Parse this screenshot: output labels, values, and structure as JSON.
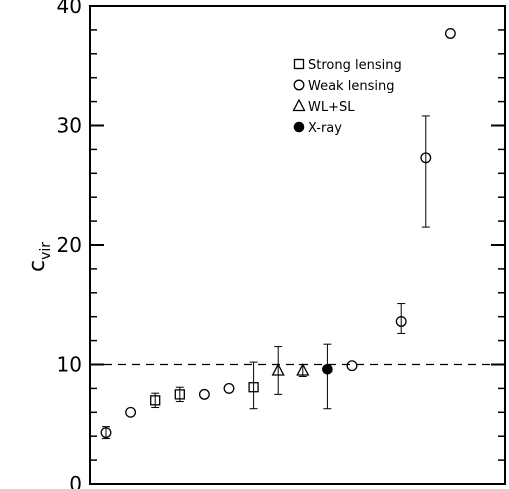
{
  "chart_data": {
    "type": "scatter",
    "title": "",
    "xlabel": "",
    "ylabel": "c",
    "ylabel_subscript": "vir",
    "ylim": [
      0,
      40
    ],
    "yticks": [
      0,
      10,
      20,
      30,
      40
    ],
    "ytick_labels": [
      "0",
      "10",
      "20",
      "30",
      "40"
    ],
    "xlim": [
      0,
      15.5
    ],
    "xticks_shown": false,
    "grid": false,
    "legend": "top-center",
    "reference_line": {
      "y": 10,
      "style": "dashed"
    },
    "series": [
      {
        "name": "Strong lensing",
        "marker": "open-square",
        "points": [
          {
            "x": 2,
            "y": 7.0,
            "err_low": 0.6,
            "err_high": 0.6
          },
          {
            "x": 3,
            "y": 7.5,
            "err_low": 0.6,
            "err_high": 0.6
          },
          {
            "x": 6,
            "y": 8.1,
            "err_low": 1.8,
            "err_high": 2.1
          }
        ]
      },
      {
        "name": "Weak lensing",
        "marker": "open-circle",
        "points": [
          {
            "x": 0,
            "y": 4.3,
            "err_low": 0.5,
            "err_high": 0.5
          },
          {
            "x": 1,
            "y": 6.0
          },
          {
            "x": 4,
            "y": 7.5
          },
          {
            "x": 5,
            "y": 8.0
          },
          {
            "x": 10,
            "y": 9.9
          },
          {
            "x": 12,
            "y": 13.6,
            "err_low": 1.0,
            "err_high": 1.5
          },
          {
            "x": 13,
            "y": 27.3,
            "err_low": 5.8,
            "err_high": 3.5
          },
          {
            "x": 14,
            "y": 37.7
          }
        ]
      },
      {
        "name": "WL+SL",
        "marker": "open-triangle",
        "points": [
          {
            "x": 7,
            "y": 9.5,
            "err_low": 2.0,
            "err_high": 2.0
          },
          {
            "x": 8,
            "y": 9.5,
            "err_low": 0.5,
            "err_high": 0.5
          }
        ]
      },
      {
        "name": "X-ray",
        "marker": "filled-circle",
        "points": [
          {
            "x": 9,
            "y": 9.6,
            "err_low": 3.3,
            "err_high": 2.1
          }
        ]
      }
    ]
  }
}
